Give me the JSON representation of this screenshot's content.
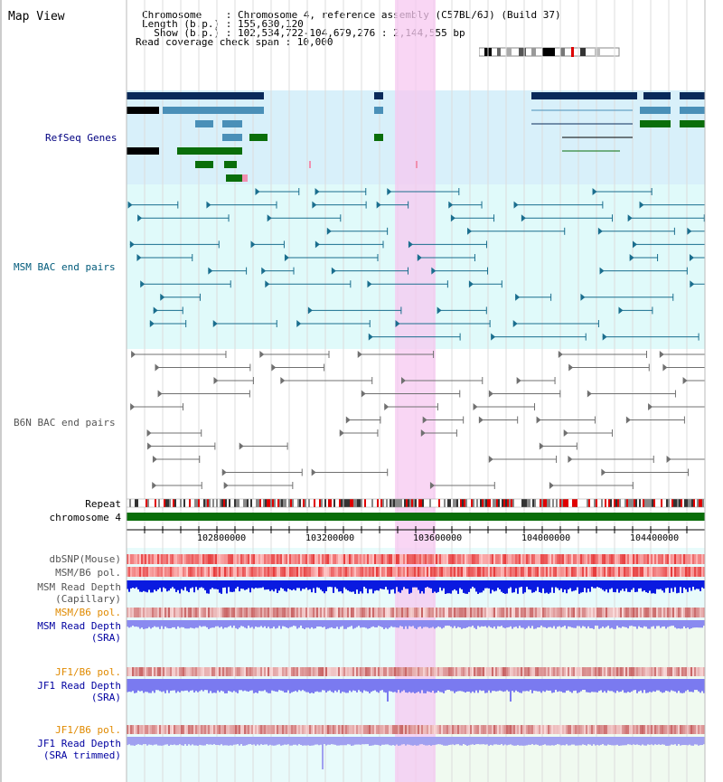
{
  "title": "Map View",
  "header": {
    "chromosome": "Chromosome    : Chromosome 4, reference assembly (C57BL/6J) (Build 37)",
    "length": "Length (b.p.) : 155,630,120",
    "show": "  Show (b.p.) : 102,534,722-104,679,276 : 2,144,555 bp",
    "coverage": "Read coverage check span : 10,000"
  },
  "tracks": {
    "refseq": "RefSeq Genes",
    "msm_bac": "MSM BAC end pairs",
    "b6n_bac": "B6N BAC end pairs",
    "repeat": "Repeat",
    "chromosome": "chromosome 4",
    "dbsnp": "dbSNP(Mouse)",
    "msm_b6_pol": "MSM/B6 pol.",
    "msm_depth_cap_1": "MSM Read Depth",
    "msm_depth_cap_2": "(Capillary)",
    "msm_b6_pol2": "MSM/B6 pol.",
    "msm_depth_sra_1": "MSM Read Depth",
    "msm_depth_sra_2": "(SRA)",
    "jf1_b6_pol": "JF1/B6 pol.",
    "jf1_depth_sra_1": "JF1 Read Depth",
    "jf1_depth_sra_2": "(SRA)",
    "jf1_b6_pol2": "JF1/B6 pol.",
    "jf1_depth_trim_1": "JF1 Read Depth",
    "jf1_depth_trim_2": "(SRA trimmed)"
  },
  "axis": {
    "ticks": [
      "102800000",
      "103200000",
      "103600000",
      "104000000",
      "104400000"
    ]
  },
  "colors": {
    "refseq_label": "#000080",
    "msm_label": "#005a7a",
    "b6n_label": "#555555",
    "orange_label": "#e08a00",
    "blue_label": "#0000a0",
    "highlight": "#f7c8f0",
    "gene_dark": "#0a2a5a",
    "gene_light": "#4a90b8",
    "gene_green": "#0a6e0a"
  }
}
